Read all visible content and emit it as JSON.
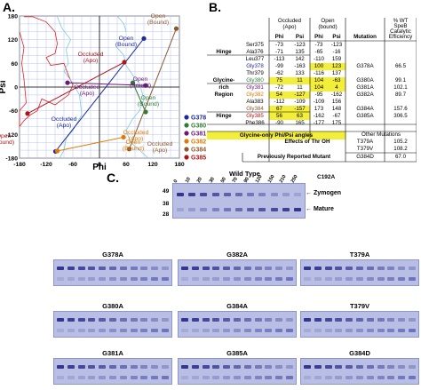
{
  "panel_labels": {
    "a": "A.",
    "b": "B.",
    "c": "C."
  },
  "plot": {
    "xlabel": "Phi",
    "ylabel": "Psi",
    "xticks": [
      "-180",
      "-120",
      "-60",
      "0",
      "60",
      "120",
      "180"
    ],
    "yticks": [
      "180",
      "120",
      "60",
      "0",
      "-60",
      "-120",
      "-180"
    ],
    "annotations": [
      {
        "text": "Open",
        "text2": "(Bound)",
        "color": "#8b5a2b"
      },
      {
        "text": "Open",
        "text2": "(Bound)",
        "color": "#1f2a9a"
      },
      {
        "text": "Occluded",
        "text2": "(Apo)",
        "color": "#b01515"
      },
      {
        "text": "Occluded",
        "text2": "(Apo)",
        "color": "#6b1a78"
      },
      {
        "text": "Open",
        "text2": "(Bound)",
        "color": "#6b1a78"
      },
      {
        "text": "Open",
        "text2": "(Bound)",
        "color": "#2e7d32"
      },
      {
        "text": "Occluded",
        "text2": "(Apo)",
        "color": "#1f2a9a"
      },
      {
        "text": "Occluded",
        "text2": "(Apo)",
        "color": "#e07b00"
      },
      {
        "text": "Open",
        "text2": "(Bound)",
        "color": "#e07b00"
      },
      {
        "text": "Open",
        "text2": "(Bound)",
        "color": "#b01515"
      },
      {
        "text": "Occluded",
        "text2": "(Apo)",
        "color": "#8b5a2b"
      }
    ],
    "legend": [
      {
        "label": "G378",
        "color": "#1f2a9a"
      },
      {
        "label": "G380",
        "color": "#2e7d32"
      },
      {
        "label": "G381",
        "color": "#6b1a78"
      },
      {
        "label": "G382",
        "color": "#e07b00"
      },
      {
        "label": "G384",
        "color": "#8b5a2b"
      },
      {
        "label": "G385",
        "color": "#b01515"
      }
    ]
  },
  "table": {
    "header": {
      "occluded": "Occluded",
      "apo": "(Apo)",
      "open": "Open",
      "bound": "(bound)",
      "phi": "Phi",
      "psi": "Psi",
      "mutation": "Mutation",
      "pct1": "% WT",
      "pct2": "SpeB",
      "pct3": "Catalytic",
      "pct4": "Efficiency"
    },
    "rows": [
      {
        "region": "",
        "res": "Ser375",
        "phi1": "-73",
        "psi1": "-123",
        "phi2": "-73",
        "psi2": "-123",
        "mut": "",
        "eff": "",
        "hl": []
      },
      {
        "region": "Hinge",
        "res": "Ala376",
        "phi1": "-71",
        "psi1": "135",
        "phi2": "-65",
        "psi2": "-16",
        "mut": "",
        "eff": "",
        "hl": []
      },
      {
        "region": "",
        "res": "Leu377",
        "phi1": "-113",
        "psi1": "142",
        "phi2": "-110",
        "psi2": "159",
        "mut": "",
        "eff": "",
        "hl": []
      },
      {
        "region": "",
        "res": "Gly378",
        "phi1": "-99",
        "psi1": "-163",
        "phi2": "100",
        "psi2": "123",
        "mut": "G378A",
        "eff": "66.5",
        "hl": [
          2,
          3
        ]
      },
      {
        "region": "",
        "res": "Thr379",
        "phi1": "-62",
        "psi1": "133",
        "phi2": "-116",
        "psi2": "137",
        "mut": "",
        "eff": "",
        "hl": []
      },
      {
        "region": "Glycine-",
        "res": "Gly380",
        "phi1": "75",
        "psi1": "11",
        "phi2": "104",
        "psi2": "-63",
        "mut": "G380A",
        "eff": "99.1",
        "hl": [
          0,
          1,
          2,
          3
        ]
      },
      {
        "region": "rich",
        "res": "Gly381",
        "phi1": "-72",
        "psi1": "11",
        "phi2": "104",
        "psi2": "4",
        "mut": "G381A",
        "eff": "102.1",
        "hl": [
          2,
          3
        ]
      },
      {
        "region": "Region",
        "res": "Gly382",
        "phi1": "54",
        "psi1": "-127",
        "phi2": "-95",
        "psi2": "-162",
        "mut": "G382A",
        "eff": "89.7",
        "hl": [
          0,
          1
        ]
      },
      {
        "region": "",
        "res": "Ala383",
        "phi1": "-112",
        "psi1": "-109",
        "phi2": "-109",
        "psi2": "156",
        "mut": "",
        "eff": "",
        "hl": []
      },
      {
        "region": "",
        "res": "Gly384",
        "phi1": "67",
        "psi1": "-157",
        "phi2": "173",
        "psi2": "148",
        "mut": "G384A",
        "eff": "157.6",
        "hl": [
          0,
          1
        ]
      },
      {
        "region": "Hinge",
        "res": "Gly385",
        "phi1": "56",
        "psi1": "63",
        "phi2": "-162",
        "psi2": "-67",
        "mut": "G385A",
        "eff": "306.5",
        "hl": [
          0,
          1
        ]
      },
      {
        "region": "",
        "res": "Phe386",
        "phi1": "-90",
        "psi1": "165",
        "phi2": "-177",
        "psi2": "175",
        "mut": "",
        "eff": "",
        "hl": []
      }
    ],
    "glycine_note": "Glycine-only Phi/Psi angles",
    "other_mutations": "Other Mutations",
    "thr_effects": "Effects of Thr OH",
    "thr_rows": [
      {
        "mut": "T379A",
        "eff": "105.2"
      },
      {
        "mut": "T379V",
        "eff": "108.2"
      }
    ],
    "prev_label": "Previously Reported Mutant",
    "prev_mut": "G384D",
    "prev_eff": "67.0"
  },
  "gels": {
    "wild_type": "Wild Type",
    "c192a": "C192A",
    "time_labels": [
      "0",
      "10",
      "20",
      "30",
      "50",
      "70",
      "90",
      "120",
      "150",
      "210",
      "250"
    ],
    "mw": [
      "49",
      "38",
      "28"
    ],
    "zymogen": "Zymogen",
    "mature": "Mature",
    "mutants": [
      "G378A",
      "G382A",
      "T379A",
      "G380A",
      "G384A",
      "T379V",
      "G381A",
      "G385A",
      "G384D"
    ]
  }
}
